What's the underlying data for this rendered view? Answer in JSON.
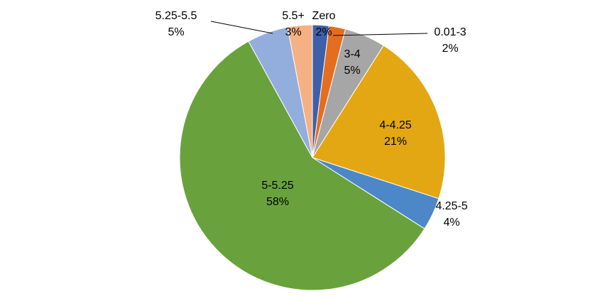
{
  "chart_data": {
    "type": "pie",
    "title": "",
    "legend": "none",
    "units": "percent",
    "direction": "clockwise",
    "start_angle_deg": 0,
    "label_format": "category newline percent",
    "categories": [
      "Zero",
      "0.01-3",
      "3-4",
      "4-4.25",
      "4.25-5",
      "5-5.25",
      "5.25-5.5",
      "5.5+"
    ],
    "values": [
      2,
      2,
      5,
      21,
      4,
      58,
      5,
      3
    ],
    "colors": [
      "#3E5FA9",
      "#E36E20",
      "#A6A6A6",
      "#E3A713",
      "#4C87C7",
      "#69A23C",
      "#93ADDC",
      "#F5B183"
    ]
  }
}
